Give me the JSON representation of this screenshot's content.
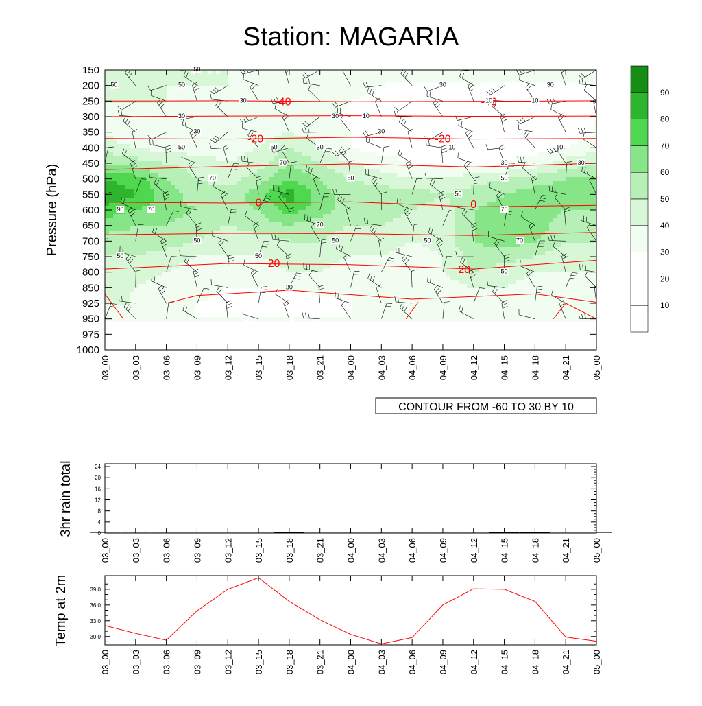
{
  "page": {
    "title": "Station: MAGARIA"
  },
  "colors": {
    "fill_levels": [
      "#ffffff",
      "#ffffff",
      "#ffffff",
      "#f0fdf0",
      "#d7f7d7",
      "#b6f0b6",
      "#86e586",
      "#4fd84f",
      "#2eb52e",
      "#168e16"
    ],
    "temperature_line": "#ff0000",
    "wind_barb": "#000000"
  },
  "chart_data": [
    {
      "type": "contour",
      "title": "Station: MAGARIA",
      "ylabel": "Pressure (hPa)",
      "xlabel": "",
      "pressure_levels": [
        "150",
        "200",
        "250",
        "300",
        "350",
        "400",
        "450",
        "500",
        "550",
        "600",
        "650",
        "700",
        "750",
        "800",
        "850",
        "925",
        "950",
        "975",
        "1000"
      ],
      "time_labels": [
        "03_00",
        "03_03",
        "03_06",
        "03_09",
        "03_12",
        "03_15",
        "03_18",
        "03_21",
        "04_00",
        "04_03",
        "04_06",
        "04_09",
        "04_12",
        "04_15",
        "04_18",
        "04_21",
        "05_00"
      ],
      "annotation": "CONTOUR FROM -60 TO 30 BY 10",
      "colorbar": {
        "labels": [
          "90",
          "80",
          "70",
          "60",
          "50",
          "40",
          "30",
          "20",
          "10"
        ]
      },
      "rh_contour_labels": [
        {
          "v": "50",
          "t": 2.5,
          "p": "200"
        },
        {
          "v": "50",
          "t": 3.0,
          "p": "150"
        },
        {
          "v": "30",
          "t": 4.5,
          "p": "250"
        },
        {
          "v": "30",
          "t": 2.5,
          "p": "300"
        },
        {
          "v": "30",
          "t": 11.0,
          "p": "200"
        },
        {
          "v": "10",
          "t": 12.5,
          "p": "250"
        },
        {
          "v": "30",
          "t": 14.5,
          "p": "200"
        },
        {
          "v": "10",
          "t": 14.0,
          "p": "250"
        },
        {
          "v": "30",
          "t": 7.5,
          "p": "300"
        },
        {
          "v": "10",
          "t": 8.5,
          "p": "300"
        },
        {
          "v": "50",
          "t": 0.3,
          "p": "200"
        },
        {
          "v": "30",
          "t": 3.0,
          "p": "350"
        },
        {
          "v": "50",
          "t": 2.5,
          "p": "400"
        },
        {
          "v": "50",
          "t": 5.5,
          "p": "400"
        },
        {
          "v": "30",
          "t": 7.0,
          "p": "400"
        },
        {
          "v": "30",
          "t": 9.0,
          "p": "350"
        },
        {
          "v": "10",
          "t": 11.3,
          "p": "400"
        },
        {
          "v": "10",
          "t": 14.8,
          "p": "400"
        },
        {
          "v": "70",
          "t": 5.8,
          "p": "450"
        },
        {
          "v": "50",
          "t": 8.0,
          "p": "500"
        },
        {
          "v": "30",
          "t": 13.0,
          "p": "450"
        },
        {
          "v": "50",
          "t": 13.0,
          "p": "500"
        },
        {
          "v": "30",
          "t": 15.5,
          "p": "450"
        },
        {
          "v": "70",
          "t": 3.5,
          "p": "500"
        },
        {
          "v": "90",
          "t": 0.5,
          "p": "600"
        },
        {
          "v": "70",
          "t": 1.5,
          "p": "600"
        },
        {
          "v": "70",
          "t": 7.0,
          "p": "650"
        },
        {
          "v": "50",
          "t": 11.5,
          "p": "550"
        },
        {
          "v": "70",
          "t": 13.0,
          "p": "600"
        },
        {
          "v": "70",
          "t": 13.5,
          "p": "700"
        },
        {
          "v": "50",
          "t": 3.0,
          "p": "700"
        },
        {
          "v": "50",
          "t": 0.5,
          "p": "750"
        },
        {
          "v": "50",
          "t": 5.0,
          "p": "750"
        },
        {
          "v": "50",
          "t": 7.5,
          "p": "700"
        },
        {
          "v": "50",
          "t": 10.5,
          "p": "700"
        },
        {
          "v": "50",
          "t": 13.0,
          "p": "800"
        },
        {
          "v": "30",
          "t": 6.0,
          "p": "850"
        }
      ],
      "temperature_contours": [
        {
          "value": -40,
          "label": "-40"
        },
        {
          "value": -20,
          "label": "-20"
        },
        {
          "value": 0,
          "label": "0"
        },
        {
          "value": 20,
          "label": "20"
        }
      ]
    },
    {
      "type": "bar",
      "ylabel": "3hr rain total",
      "categories": [
        "03_00",
        "03_03",
        "03_06",
        "03_09",
        "03_12",
        "03_15",
        "03_18",
        "03_21",
        "04_00",
        "04_03",
        "04_06",
        "04_09",
        "04_12",
        "04_15",
        "04_18",
        "04_21",
        "05_00"
      ],
      "values": [
        0,
        0,
        0,
        0,
        0,
        0,
        0.1,
        0,
        0,
        0,
        0,
        0,
        0,
        0.1,
        0.1,
        0,
        0
      ],
      "yticks": [
        "24",
        "20",
        "16",
        "12",
        "8",
        "4",
        "0"
      ],
      "ylim": [
        0,
        24
      ]
    },
    {
      "type": "line",
      "ylabel": "Temp at 2m",
      "categories": [
        "03_00",
        "03_03",
        "03_06",
        "03_09",
        "03_12",
        "03_15",
        "03_18",
        "03_21",
        "04_00",
        "04_03",
        "04_06",
        "04_09",
        "04_12",
        "04_15",
        "04_18",
        "04_21",
        "05_00"
      ],
      "values": [
        32.1,
        30.6,
        29.3,
        34.9,
        39.0,
        41.2,
        36.7,
        33.2,
        30.4,
        28.6,
        29.8,
        36.0,
        39.1,
        39.0,
        36.7,
        29.9,
        29.1
      ],
      "yticks": [
        "39.0",
        "36.0",
        "33.0",
        "30.0"
      ],
      "ylim": [
        28.4,
        41.6
      ]
    }
  ]
}
